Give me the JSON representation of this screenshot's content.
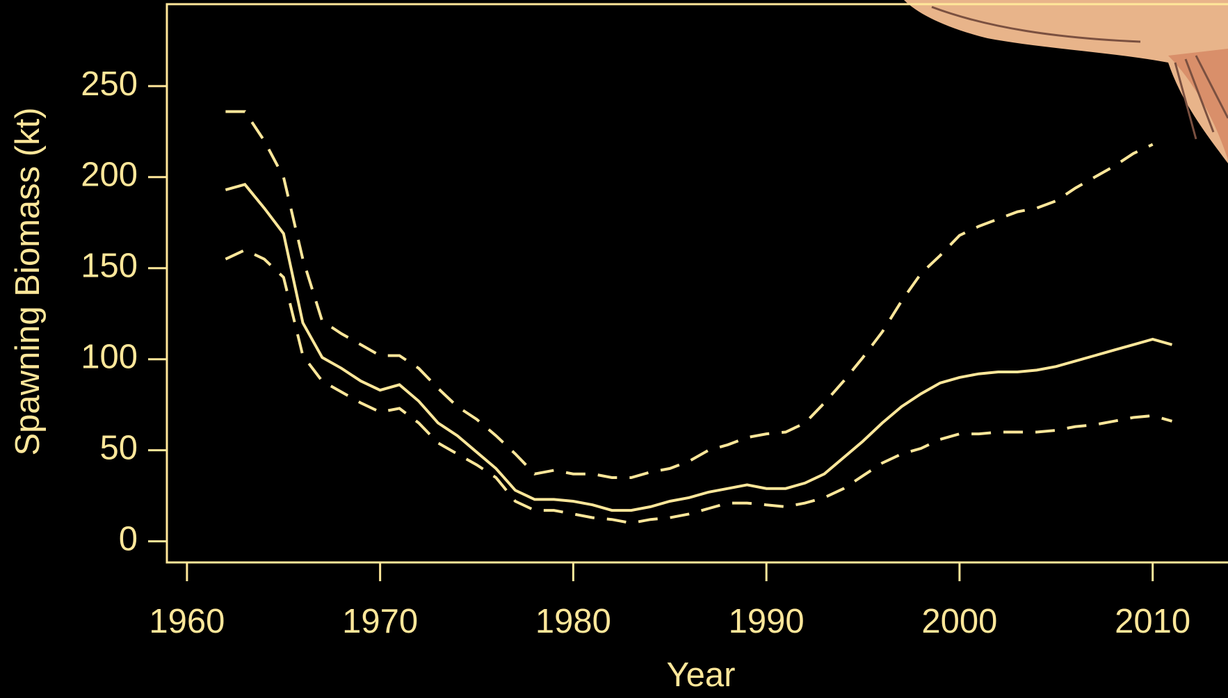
{
  "chart_data": {
    "type": "line",
    "x_label": "Year",
    "y_label": "Spawning Biomass (kt)",
    "x": [
      1962,
      1963,
      1964,
      1965,
      1966,
      1967,
      1968,
      1969,
      1970,
      1971,
      1972,
      1973,
      1974,
      1975,
      1976,
      1977,
      1978,
      1979,
      1980,
      1981,
      1982,
      1983,
      1984,
      1985,
      1986,
      1987,
      1988,
      1989,
      1990,
      1991,
      1992,
      1993,
      1994,
      1995,
      1996,
      1997,
      1998,
      1999,
      2000,
      2001,
      2002,
      2003,
      2004,
      2005,
      2006,
      2007,
      2008,
      2009,
      2010,
      2011
    ],
    "series": [
      {
        "color": "#ffe79a",
        "dash": "solid",
        "values": [
          193,
          196,
          183,
          169,
          120,
          101,
          95,
          88,
          83,
          86,
          77,
          65,
          58,
          49,
          40,
          28,
          23,
          23,
          22,
          20,
          17,
          17,
          19,
          22,
          24,
          27,
          29,
          31,
          29,
          29,
          32,
          37,
          46,
          55,
          65,
          74,
          81,
          87,
          90,
          92,
          93,
          93,
          94,
          96,
          99,
          102,
          105,
          108,
          111,
          108
        ]
      },
      {
        "color": "#ffe79a",
        "dash": "dashed",
        "values": [
          236,
          236,
          220,
          200,
          155,
          121,
          114,
          108,
          102,
          102,
          95,
          84,
          74,
          67,
          58,
          48,
          37,
          39,
          37,
          37,
          35,
          35,
          38,
          40,
          44,
          50,
          53,
          57,
          59,
          60,
          65,
          76,
          88,
          101,
          115,
          132,
          147,
          157,
          168,
          173,
          177,
          181,
          183,
          187,
          194,
          200,
          206,
          213,
          218,
          null
        ]
      },
      {
        "color": "#ffe79a",
        "dash": "dashed",
        "values": [
          155,
          160,
          155,
          145,
          102,
          88,
          82,
          76,
          71,
          73,
          65,
          54,
          48,
          42,
          35,
          22,
          17,
          17,
          15,
          13,
          12,
          10,
          12,
          13,
          15,
          18,
          21,
          21,
          20,
          19,
          21,
          24,
          29,
          36,
          43,
          48,
          51,
          56,
          59,
          59,
          60,
          60,
          60,
          61,
          63,
          64,
          66,
          68,
          69,
          66
        ]
      }
    ],
    "xlim": [
      1958.96,
      2013.9
    ],
    "ylim": [
      -11.6,
      295
    ],
    "xticks": [
      1960,
      1970,
      1980,
      1990,
      2000,
      2010
    ],
    "yticks": [
      0,
      50,
      100,
      150,
      200,
      250
    ]
  }
}
